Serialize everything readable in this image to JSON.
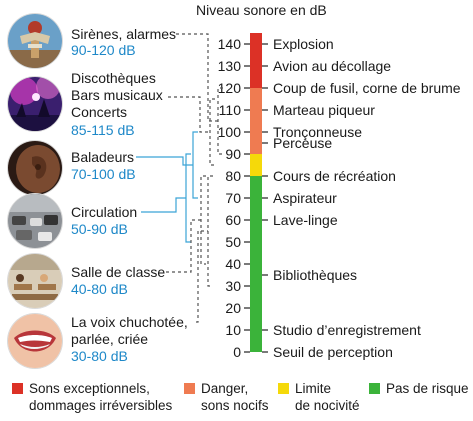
{
  "scale_title": "Niveau sonore en dB",
  "scale": {
    "min": 0,
    "max": 145,
    "ticks": [
      0,
      10,
      20,
      30,
      40,
      50,
      60,
      70,
      80,
      90,
      100,
      110,
      120,
      130,
      140
    ],
    "zones": [
      {
        "from": 0,
        "to": 80,
        "color": "#3bb33a"
      },
      {
        "from": 80,
        "to": 90,
        "color": "#f5d90a"
      },
      {
        "from": 90,
        "to": 120,
        "color": "#ef7b51"
      },
      {
        "from": 120,
        "to": 145,
        "color": "#dc3126"
      }
    ]
  },
  "examples": [
    {
      "label": "Explosion",
      "db": 140
    },
    {
      "label": "Avion au décollage",
      "db": 130
    },
    {
      "label": "Coup de fusil, corne de brume",
      "db": 120
    },
    {
      "label": "Marteau piqueur",
      "db": 110
    },
    {
      "label": "Tronçonneuse",
      "db": 100
    },
    {
      "label": "Perceuse",
      "db": 95
    },
    {
      "label": "Cours de récréation",
      "db": 80
    },
    {
      "label": "Aspirateur",
      "db": 70
    },
    {
      "label": "Lave-linge",
      "db": 60
    },
    {
      "label": "Bibliothèques",
      "db": 35
    },
    {
      "label": "Studio d’enregistrement",
      "db": 10
    },
    {
      "label": "Seuil de perception",
      "db": 0
    }
  ],
  "sources": [
    {
      "name_lines": [
        "Sirènes, alarmes"
      ],
      "range": "90-120 dB",
      "from": 90,
      "to": 120,
      "icon": "siren-icon"
    },
    {
      "name_lines": [
        "Discothèques",
        "Bars musicaux",
        "Concerts"
      ],
      "range": "85-115 dB",
      "from": 85,
      "to": 115,
      "icon": "concert-icon"
    },
    {
      "name_lines": [
        "Baladeurs"
      ],
      "range": "70-100 dB",
      "from": 70,
      "to": 100,
      "icon": "ear-icon"
    },
    {
      "name_lines": [
        "Circulation"
      ],
      "range": "50-90 dB",
      "from": 50,
      "to": 90,
      "icon": "traffic-icon"
    },
    {
      "name_lines": [
        "Salle de classe"
      ],
      "range": "40-80 dB",
      "from": 40,
      "to": 80,
      "icon": "classroom-icon"
    },
    {
      "name_lines": [
        "La voix chuchotée,",
        "parlée, criée"
      ],
      "range": "30-80 dB",
      "from": 30,
      "to": 80,
      "icon": "mouth-icon"
    }
  ],
  "legend": [
    {
      "lines": [
        "Sons exceptionnels,",
        "dommages irréversibles"
      ],
      "color": "#dc3126"
    },
    {
      "lines": [
        "Danger,",
        "sons nocifs"
      ],
      "color": "#ef7b51"
    },
    {
      "lines": [
        "Limite",
        "de nocivité"
      ],
      "color": "#f5d90a"
    },
    {
      "lines": [
        "Pas de risque"
      ],
      "color": "#3bb33a"
    }
  ],
  "colors": {
    "range_text": "#1e88c8",
    "bracket_line": "#3ba4d6",
    "dashed_line": "#555555"
  }
}
